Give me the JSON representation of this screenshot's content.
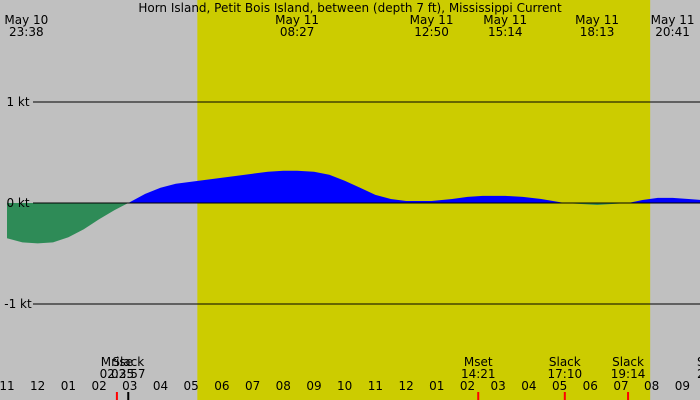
{
  "chart_data": {
    "type": "area",
    "title": "Horn Island, Petit Bois Island, between (depth 7 ft), Mississippi Current",
    "unit": "kt",
    "ylim": [
      -1.5,
      1.5
    ],
    "y_ticks": [
      {
        "value": 1,
        "label": "1 kt"
      },
      {
        "value": 0,
        "label": "0 kt"
      },
      {
        "value": -1,
        "label": "-1 kt"
      }
    ],
    "x_start_hour": 11,
    "x_end_hour": 34,
    "daylight": {
      "start_hour": 17.2,
      "end_hour": 31.95
    },
    "hour_labels": [
      "11",
      "12",
      "01",
      "02",
      "03",
      "04",
      "05",
      "06",
      "07",
      "08",
      "09",
      "10",
      "11",
      "12",
      "01",
      "02",
      "03",
      "04",
      "05",
      "06",
      "07",
      "08",
      "09"
    ],
    "top_events": [
      {
        "date": "May 10",
        "time": "23:38",
        "hour": 11.63
      },
      {
        "date": "May 11",
        "time": "08:27",
        "hour": 20.45
      },
      {
        "date": "May 11",
        "time": "12:50",
        "hour": 24.83
      },
      {
        "date": "May 11",
        "time": "15:14",
        "hour": 27.23
      },
      {
        "date": "May 11",
        "time": "18:13",
        "hour": 30.22
      },
      {
        "date": "May 11",
        "time": "20:41",
        "hour": 32.68
      }
    ],
    "bottom_events": [
      {
        "label": "Mrise",
        "time": "02:35",
        "hour": 14.58,
        "marker": "#ff0000"
      },
      {
        "label": "Slack",
        "time": "02:57",
        "hour": 14.95,
        "marker": "#000000"
      },
      {
        "label": "Mset",
        "time": "14:21",
        "hour": 26.35,
        "marker": "#ff0000"
      },
      {
        "label": "Slack",
        "time": "17:10",
        "hour": 29.17,
        "marker": "#ff0000"
      },
      {
        "label": "Slack",
        "time": "19:14",
        "hour": 31.23,
        "marker": "#ff0000"
      },
      {
        "label": "S",
        "time": "2",
        "hour": 33.6,
        "marker": ""
      }
    ],
    "series": [
      {
        "x": [
          11.0,
          11.5,
          12.0,
          12.5,
          13.0,
          13.5,
          14.0,
          14.5,
          14.95,
          15.5,
          16.0,
          16.5,
          17.0,
          17.5,
          18.0,
          18.5,
          19.0,
          19.5,
          20.0,
          20.45,
          21.0,
          21.5,
          22.0,
          22.5,
          23.0,
          23.5,
          24.0,
          24.5,
          24.83,
          25.5,
          26.0,
          26.5,
          27.23,
          27.8,
          28.4,
          29.17,
          29.7,
          30.22,
          30.7,
          31.23,
          31.7,
          32.2,
          32.68,
          33.2,
          34.0
        ],
        "values": [
          -0.35,
          -0.39,
          -0.4,
          -0.39,
          -0.34,
          -0.26,
          -0.16,
          -0.07,
          0.0,
          0.09,
          0.15,
          0.19,
          0.21,
          0.23,
          0.25,
          0.27,
          0.29,
          0.31,
          0.32,
          0.32,
          0.31,
          0.28,
          0.22,
          0.15,
          0.08,
          0.04,
          0.02,
          0.02,
          0.02,
          0.04,
          0.06,
          0.07,
          0.07,
          0.06,
          0.04,
          0.0,
          -0.01,
          -0.02,
          -0.01,
          0.0,
          0.03,
          0.05,
          0.05,
          0.04,
          0.02
        ]
      }
    ],
    "colors": {
      "background": "#c0c0c0",
      "daylight": "#cccc00",
      "flood": "#0000ff",
      "ebb": "#2e8b57",
      "gridline": "#000000"
    }
  }
}
